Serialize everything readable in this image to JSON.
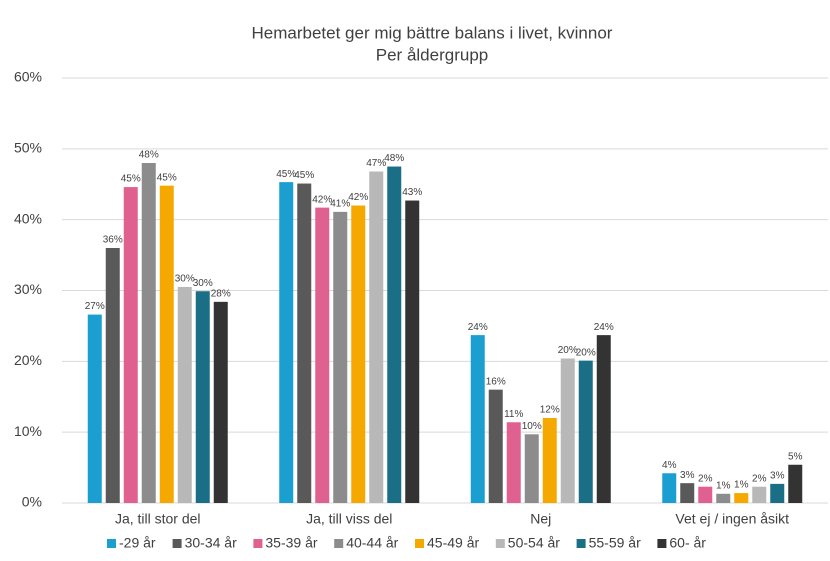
{
  "chart_data": {
    "type": "bar",
    "title": "Hemarbetet ger mig bättre balans i livet, kvinnor",
    "subtitle": "Per åldergrupp",
    "categories": [
      "Ja, till stor del",
      "Ja, till viss del",
      "Nej",
      "Vet ej / ingen åsikt"
    ],
    "series": [
      {
        "name": "-29 år",
        "color": "#1a9fd0",
        "values": [
          26.6,
          45.3,
          23.7,
          4.2
        ],
        "value_labels": [
          "27%",
          "45%",
          "24%",
          "4%"
        ]
      },
      {
        "name": "30-34 år",
        "color": "#595959",
        "values": [
          36.0,
          45.1,
          16.0,
          2.8
        ],
        "value_labels": [
          "36%",
          "45%",
          "16%",
          "3%"
        ]
      },
      {
        "name": "35-39 år",
        "color": "#e0608f",
        "values": [
          44.6,
          41.7,
          11.4,
          2.3
        ],
        "value_labels": [
          "45%",
          "42%",
          "11%",
          "2%"
        ]
      },
      {
        "name": "40-44 år",
        "color": "#8c8c8c",
        "values": [
          48.0,
          41.1,
          9.7,
          1.3
        ],
        "value_labels": [
          "48%",
          "41%",
          "10%",
          "1%"
        ]
      },
      {
        "name": "45-49 år",
        "color": "#f5a800",
        "values": [
          44.8,
          42.0,
          12.0,
          1.4
        ],
        "value_labels": [
          "45%",
          "42%",
          "12%",
          "1%"
        ]
      },
      {
        "name": "50-54 år",
        "color": "#b8b8b8",
        "values": [
          30.5,
          46.8,
          20.4,
          2.3
        ],
        "value_labels": [
          "30%",
          "47%",
          "20%",
          "2%"
        ]
      },
      {
        "name": "55-59 år",
        "color": "#1a6f86",
        "values": [
          29.9,
          47.5,
          20.1,
          2.7
        ],
        "value_labels": [
          "30%",
          "48%",
          "20%",
          "3%"
        ]
      },
      {
        "name": "60- år",
        "color": "#333333",
        "values": [
          28.4,
          42.7,
          23.7,
          5.4
        ],
        "value_labels": [
          "28%",
          "43%",
          "24%",
          "5%"
        ]
      }
    ],
    "ylim": [
      0,
      60
    ],
    "yticks": [
      {
        "value": 0,
        "label": "0%"
      },
      {
        "value": 10,
        "label": "10%"
      },
      {
        "value": 20,
        "label": "20%"
      },
      {
        "value": 30,
        "label": "30%"
      },
      {
        "value": 40,
        "label": "40%"
      },
      {
        "value": 50,
        "label": "50%"
      },
      {
        "value": 60,
        "label": "60%"
      }
    ],
    "grid": true,
    "legend": "bottom"
  }
}
